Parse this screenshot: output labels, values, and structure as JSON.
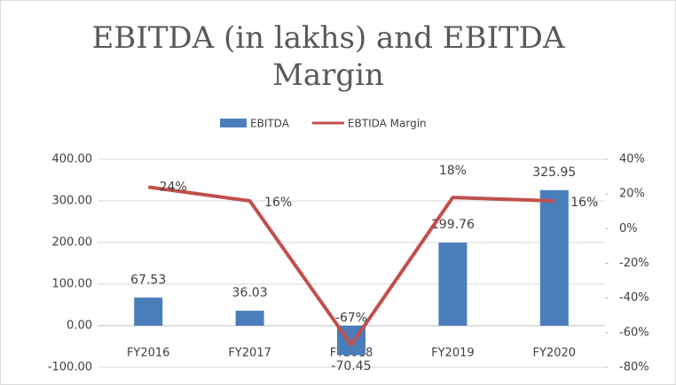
{
  "chart_data": {
    "type": "bar-line",
    "title": "EBITDA (in lakhs) and EBITDA Margin",
    "categories": [
      "FY2016",
      "FY2017",
      "FY2018",
      "FY2019",
      "FY2020"
    ],
    "series": [
      {
        "name": "EBITDA",
        "type": "bar",
        "color": "#4a7ebb",
        "values": [
          67.53,
          36.03,
          -70.45,
          199.76,
          325.95
        ]
      },
      {
        "name": "EBTIDA Margin",
        "type": "line",
        "color": "#c0504d",
        "axis": "y2",
        "values": [
          24,
          16,
          -67,
          18,
          16
        ],
        "value_labels": [
          "24%",
          "16%",
          "-67%",
          "18%",
          "16%"
        ]
      }
    ],
    "ylim": [
      -100,
      400
    ],
    "yticks": [
      {
        "value": -100,
        "label": "-100.00"
      },
      {
        "value": 0,
        "label": "0.00"
      },
      {
        "value": 100,
        "label": "100.00"
      },
      {
        "value": 200,
        "label": "200.00"
      },
      {
        "value": 300,
        "label": "300.00"
      },
      {
        "value": 400,
        "label": "400.00"
      }
    ],
    "y2lim": [
      -80,
      40
    ],
    "y2ticks": [
      {
        "value": -80,
        "label": "-80%"
      },
      {
        "value": -60,
        "label": "-60%"
      },
      {
        "value": -40,
        "label": "-40%"
      },
      {
        "value": -20,
        "label": "-20%"
      },
      {
        "value": 0,
        "label": "0%"
      },
      {
        "value": 20,
        "label": "20%"
      },
      {
        "value": 40,
        "label": "40%"
      }
    ],
    "grid": true,
    "legend": "top"
  }
}
